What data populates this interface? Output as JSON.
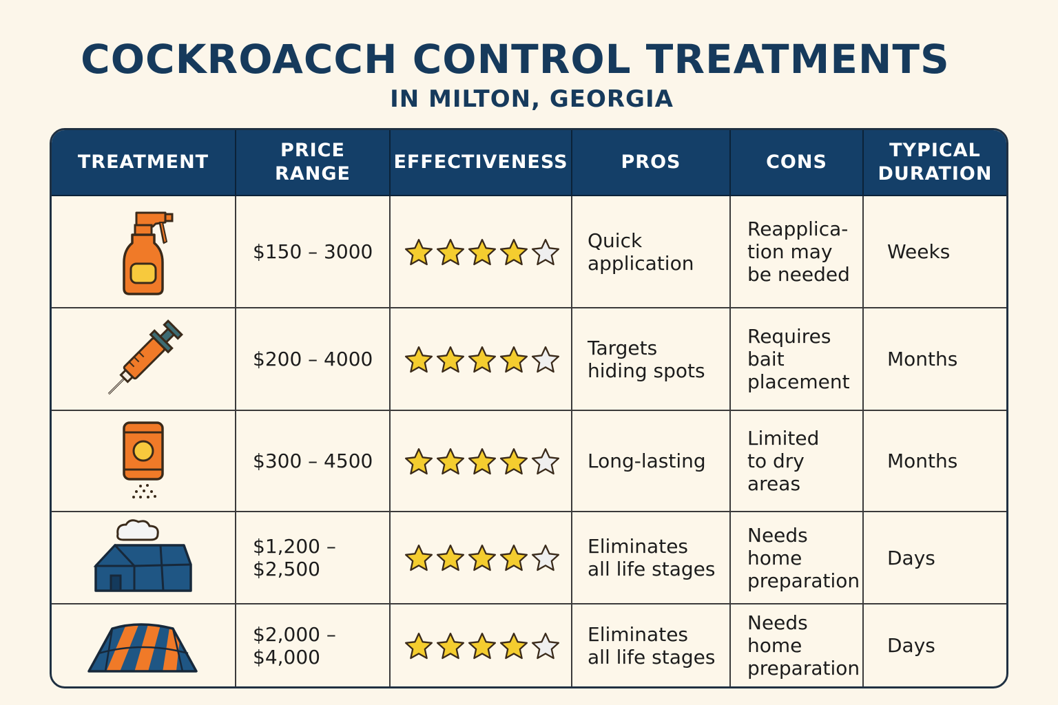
{
  "title": "COCKROACCH CONTROL TREATMENTS",
  "subtitle": "IN MILTON, GEORGIA",
  "colors": {
    "header_bg": "#143f68",
    "accent_orange": "#f07a28",
    "star_fill": "#f4cd2f",
    "star_empty": "#efefef",
    "background": "#fcf6ea"
  },
  "headers": {
    "treatment": "TREATMENT",
    "price_range": "PRICE\nRANGE",
    "effectiveness": "EFFECTIVENESS",
    "pros": "PROS",
    "cons": "CONS",
    "typical_duration": "TYPICAL\nDURATION"
  },
  "rows": [
    {
      "icon": "spray-bottle-icon",
      "price": "$150 – 3000",
      "rating": 4,
      "rating_max": 5,
      "pros": "Quick\napplication",
      "cons": "Reapplica-\ntion may\nbe needed",
      "duration": "Weeks"
    },
    {
      "icon": "syringe-icon",
      "price": "$200 – 4000",
      "rating": 4,
      "rating_max": 5,
      "pros": "Targets\nhiding spots",
      "cons": "Requires\nbait\nplacement",
      "duration": "Months"
    },
    {
      "icon": "powder-canister-icon",
      "price": "$300 – 4500",
      "rating": 4,
      "rating_max": 5,
      "pros": "Long-lasting",
      "cons": "Limited\nto dry areas",
      "duration": "Months"
    },
    {
      "icon": "fumigation-house-icon",
      "price": "$1,200 –\n$2,500",
      "rating": 4,
      "rating_max": 5,
      "pros": "Eliminates\nall life stages",
      "cons": "Needs\nhome\npreparation",
      "duration": "Days"
    },
    {
      "icon": "tented-house-icon",
      "price": "$2,000 –\n$4,000",
      "rating": 4,
      "rating_max": 5,
      "pros": "Eliminates\nall life stages",
      "cons": "Needs\nhome\npreparation",
      "duration": "Days"
    }
  ]
}
